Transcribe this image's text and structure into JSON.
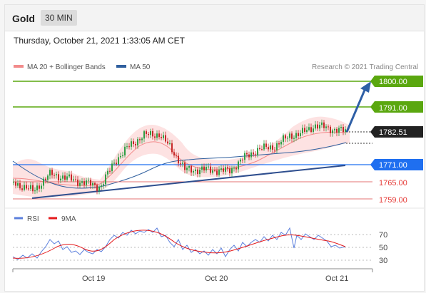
{
  "header": {
    "title": "Gold",
    "interval": "30 MIN"
  },
  "timestamp": "Thursday, October 21, 2021 1:33:05 AM CET",
  "legend": [
    {
      "label": "MA 20 + Bollinger Bands",
      "color": "#f28b8b"
    },
    {
      "label": "MA 50",
      "color": "#2f5f9e"
    }
  ],
  "credit": "Research © 2021 Trading Central",
  "colors": {
    "resistance": "#5aa70f",
    "current": "#222222",
    "pivot": "#1f6ff0",
    "support": "#e53935",
    "trend": "#2e4e8e",
    "rsi": "#5b7fdc",
    "ma9": "#e41a1c"
  },
  "levels": {
    "r2": "1800.00",
    "r1": "1791.00",
    "current": "1782.51",
    "pivot": "1771.00",
    "s1": "1765.00",
    "s2": "1759.00"
  },
  "rsi_legend": [
    {
      "label": "RSI",
      "color": "#5b7fdc"
    },
    {
      "label": "9MA",
      "color": "#e41a1c"
    }
  ],
  "rsi_ticks": [
    "70",
    "50",
    "30"
  ],
  "x_ticks": [
    "Oct 19",
    "Oct 20",
    "Oct 21"
  ]
}
